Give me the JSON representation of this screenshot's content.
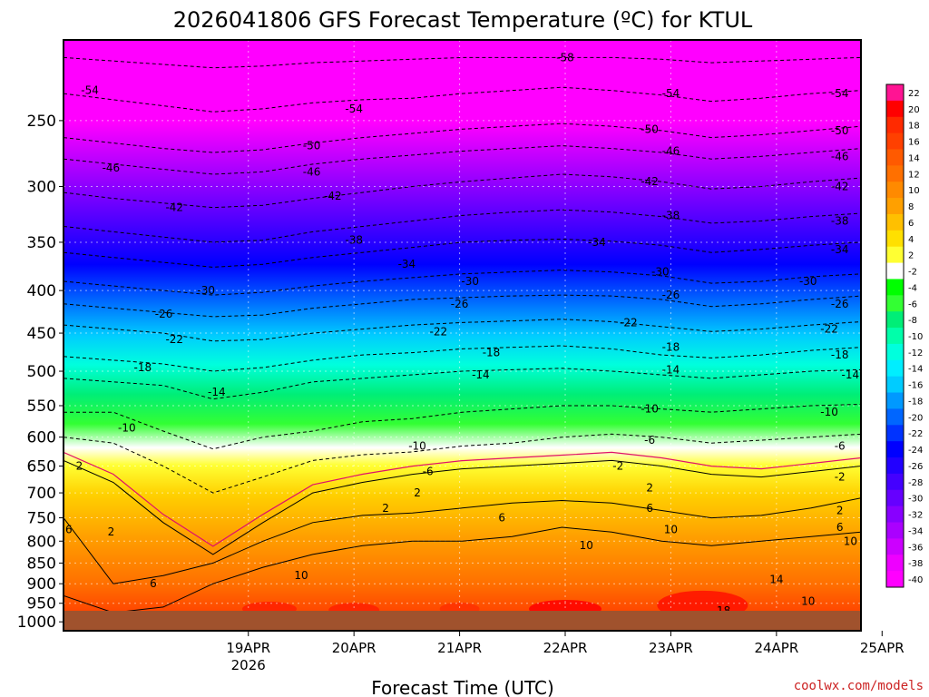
{
  "chart_data": {
    "type": "heatmap",
    "title": "2026041806 GFS Forecast Temperature (ºC) for KTUL",
    "xlabel": "Forecast Time (UTC)",
    "ylabel": "",
    "credit": "coolwx.com/models",
    "x_ticks": [
      {
        "label": "19APR",
        "sublabel": "2026",
        "day": 1
      },
      {
        "label": "20APR",
        "sublabel": "",
        "day": 2
      },
      {
        "label": "21APR",
        "sublabel": "",
        "day": 3
      },
      {
        "label": "22APR",
        "sublabel": "",
        "day": 4
      },
      {
        "label": "23APR",
        "sublabel": "",
        "day": 5
      },
      {
        "label": "24APR",
        "sublabel": "",
        "day": 6
      },
      {
        "label": "25APR",
        "sublabel": "",
        "day": 7
      }
    ],
    "xlim_days": [
      -0.75,
      6.8
    ],
    "y_ticks": [
      250,
      300,
      350,
      400,
      450,
      500,
      550,
      600,
      650,
      700,
      750,
      800,
      850,
      900,
      950,
      1000
    ],
    "y_axis": "pressure (hPa), log scale, inverted",
    "ylim_hpa": [
      1025,
      200
    ],
    "colorbar_levels": [
      22,
      20,
      18,
      16,
      14,
      12,
      10,
      8,
      6,
      4,
      2,
      -2,
      -4,
      -6,
      -8,
      -10,
      -12,
      -14,
      -16,
      -18,
      -20,
      -22,
      -24,
      -26,
      -28,
      -30,
      -32,
      -34,
      -36,
      -38,
      -40
    ],
    "colorbar_colors": [
      "#ff1493",
      "#ff0000",
      "#ff2a00",
      "#ff4000",
      "#ff5a00",
      "#ff7000",
      "#ff8a00",
      "#ffa000",
      "#ffc000",
      "#ffe000",
      "#ffff33",
      "#ffffff",
      "#00ff00",
      "#33ff33",
      "#00ee77",
      "#00ffaa",
      "#00ffdd",
      "#00eeff",
      "#00ccff",
      "#0099ff",
      "#0066ff",
      "#0033ff",
      "#0000ff",
      "#2200ff",
      "#4400ff",
      "#6600ff",
      "#8800ff",
      "#aa00ff",
      "#cc00ff",
      "#ee00ff",
      "#ff00ff"
    ],
    "isotherm_series": [
      {
        "temp": 2,
        "pressure_hpa": [
          640,
          680,
          760,
          830,
          760,
          700,
          680,
          665,
          655,
          650,
          645,
          640,
          650,
          665,
          670,
          660,
          650
        ]
      },
      {
        "temp": 6,
        "pressure_hpa": [
          750,
          900,
          880,
          850,
          800,
          760,
          745,
          740,
          730,
          720,
          715,
          720,
          735,
          750,
          745,
          730,
          710
        ]
      },
      {
        "temp": 10,
        "pressure_hpa": [
          930,
          975,
          960,
          900,
          860,
          830,
          810,
          800,
          800,
          790,
          770,
          780,
          800,
          810,
          800,
          790,
          780
        ]
      },
      {
        "temp": -6,
        "pressure_hpa": [
          600,
          610,
          650,
          700,
          670,
          640,
          630,
          625,
          615,
          610,
          600,
          595,
          600,
          610,
          605,
          600,
          595
        ]
      },
      {
        "temp": -10,
        "pressure_hpa": [
          560,
          560,
          590,
          620,
          600,
          590,
          575,
          570,
          560,
          555,
          550,
          550,
          555,
          560,
          555,
          550,
          548
        ]
      },
      {
        "temp": -14,
        "pressure_hpa": [
          510,
          515,
          520,
          540,
          530,
          515,
          510,
          505,
          500,
          498,
          496,
          500,
          505,
          510,
          505,
          500,
          498
        ]
      },
      {
        "temp": -18,
        "pressure_hpa": [
          480,
          485,
          490,
          500,
          495,
          485,
          478,
          475,
          470,
          468,
          466,
          470,
          478,
          482,
          478,
          472,
          468
        ]
      },
      {
        "temp": -22,
        "pressure_hpa": [
          440,
          445,
          450,
          460,
          458,
          450,
          445,
          440,
          437,
          435,
          433,
          436,
          442,
          448,
          445,
          440,
          436
        ]
      },
      {
        "temp": -26,
        "pressure_hpa": [
          415,
          420,
          425,
          430,
          428,
          420,
          415,
          410,
          408,
          406,
          405,
          406,
          410,
          418,
          415,
          410,
          406
        ]
      },
      {
        "temp": -30,
        "pressure_hpa": [
          390,
          395,
          400,
          405,
          402,
          395,
          390,
          386,
          382,
          380,
          378,
          380,
          384,
          392,
          390,
          385,
          382
        ]
      },
      {
        "temp": -34,
        "pressure_hpa": [
          360,
          365,
          370,
          375,
          372,
          365,
          360,
          355,
          350,
          348,
          347,
          349,
          353,
          360,
          357,
          353,
          350
        ]
      },
      {
        "temp": -38,
        "pressure_hpa": [
          335,
          340,
          345,
          350,
          348,
          340,
          335,
          330,
          325,
          322,
          320,
          322,
          326,
          332,
          330,
          326,
          323
        ]
      },
      {
        "temp": -42,
        "pressure_hpa": [
          305,
          310,
          314,
          318,
          316,
          310,
          305,
          300,
          296,
          293,
          290,
          292,
          296,
          302,
          300,
          296,
          293
        ]
      },
      {
        "temp": -46,
        "pressure_hpa": [
          278,
          282,
          286,
          290,
          288,
          282,
          278,
          275,
          272,
          270,
          268,
          270,
          273,
          278,
          276,
          273,
          270
        ]
      },
      {
        "temp": -50,
        "pressure_hpa": [
          262,
          266,
          270,
          273,
          271,
          266,
          262,
          259,
          256,
          254,
          252,
          254,
          257,
          262,
          260,
          257,
          254
        ]
      },
      {
        "temp": -54,
        "pressure_hpa": [
          232,
          236,
          240,
          244,
          242,
          238,
          236,
          235,
          232,
          230,
          228,
          230,
          233,
          237,
          235,
          232,
          230
        ]
      },
      {
        "temp": -58,
        "pressure_hpa": [
          210,
          212,
          214,
          216,
          215,
          213,
          212,
          211,
          210,
          210,
          210,
          210,
          211,
          213,
          212,
          211,
          210
        ]
      }
    ],
    "isotherm_labels": [
      {
        "text": "-58",
        "day": 4.0,
        "hpa": 210
      },
      {
        "text": "-54",
        "day": -0.5,
        "hpa": 230
      },
      {
        "text": "-54",
        "day": 2.0,
        "hpa": 242
      },
      {
        "text": "-54",
        "day": 5.0,
        "hpa": 232
      },
      {
        "text": "-54",
        "day": 6.6,
        "hpa": 232
      },
      {
        "text": "-50",
        "day": 1.6,
        "hpa": 268
      },
      {
        "text": "-50",
        "day": 4.8,
        "hpa": 256
      },
      {
        "text": "-50",
        "day": 6.6,
        "hpa": 257
      },
      {
        "text": "-46",
        "day": -0.3,
        "hpa": 285
      },
      {
        "text": "-46",
        "day": 1.6,
        "hpa": 288
      },
      {
        "text": "-46",
        "day": 5.0,
        "hpa": 272
      },
      {
        "text": "-46",
        "day": 6.6,
        "hpa": 276
      },
      {
        "text": "-42",
        "day": 0.3,
        "hpa": 318
      },
      {
        "text": "-42",
        "day": 1.8,
        "hpa": 308
      },
      {
        "text": "-42",
        "day": 4.8,
        "hpa": 296
      },
      {
        "text": "-42",
        "day": 6.6,
        "hpa": 300
      },
      {
        "text": "-38",
        "day": 2.0,
        "hpa": 348
      },
      {
        "text": "-38",
        "day": 5.0,
        "hpa": 325
      },
      {
        "text": "-38",
        "day": 6.6,
        "hpa": 330
      },
      {
        "text": "-34",
        "day": 2.5,
        "hpa": 372
      },
      {
        "text": "-34",
        "day": 4.3,
        "hpa": 350
      },
      {
        "text": "-34",
        "day": 6.6,
        "hpa": 357
      },
      {
        "text": "-30",
        "day": 0.6,
        "hpa": 400
      },
      {
        "text": "-30",
        "day": 3.1,
        "hpa": 390
      },
      {
        "text": "-30",
        "day": 4.9,
        "hpa": 380
      },
      {
        "text": "-30",
        "day": 6.3,
        "hpa": 390
      },
      {
        "text": "-26",
        "day": 0.2,
        "hpa": 427
      },
      {
        "text": "-26",
        "day": 3.0,
        "hpa": 415
      },
      {
        "text": "-26",
        "day": 5.0,
        "hpa": 405
      },
      {
        "text": "-26",
        "day": 6.6,
        "hpa": 415
      },
      {
        "text": "-22",
        "day": 0.3,
        "hpa": 458
      },
      {
        "text": "-22",
        "day": 2.8,
        "hpa": 448
      },
      {
        "text": "-22",
        "day": 4.6,
        "hpa": 437
      },
      {
        "text": "-22",
        "day": 6.5,
        "hpa": 445
      },
      {
        "text": "-18",
        "day": 0.0,
        "hpa": 495
      },
      {
        "text": "-18",
        "day": 3.3,
        "hpa": 475
      },
      {
        "text": "-18",
        "day": 5.0,
        "hpa": 468
      },
      {
        "text": "-18",
        "day": 6.6,
        "hpa": 478
      },
      {
        "text": "-14",
        "day": 0.7,
        "hpa": 530
      },
      {
        "text": "-14",
        "day": 3.2,
        "hpa": 505
      },
      {
        "text": "-14",
        "day": 5.0,
        "hpa": 498
      },
      {
        "text": "-14",
        "day": 6.7,
        "hpa": 505
      },
      {
        "text": "-10",
        "day": -0.15,
        "hpa": 585
      },
      {
        "text": "-10",
        "day": 2.6,
        "hpa": 615
      },
      {
        "text": "-10",
        "day": 4.8,
        "hpa": 555
      },
      {
        "text": "-10",
        "day": 6.5,
        "hpa": 560
      },
      {
        "text": "-6",
        "day": 2.7,
        "hpa": 660
      },
      {
        "text": "-6",
        "day": 4.8,
        "hpa": 605
      },
      {
        "text": "-6",
        "day": 6.6,
        "hpa": 615
      },
      {
        "text": "-2",
        "day": 4.5,
        "hpa": 650
      },
      {
        "text": "-2",
        "day": 6.6,
        "hpa": 670
      },
      {
        "text": "2",
        "day": -0.6,
        "hpa": 650
      },
      {
        "text": "2",
        "day": 2.6,
        "hpa": 700
      },
      {
        "text": "2",
        "day": 2.3,
        "hpa": 730
      },
      {
        "text": "2",
        "day": 4.8,
        "hpa": 690
      },
      {
        "text": "2",
        "day": 6.6,
        "hpa": 735
      },
      {
        "text": "2",
        "day": -0.3,
        "hpa": 780
      },
      {
        "text": "6",
        "day": -0.7,
        "hpa": 775
      },
      {
        "text": "6",
        "day": 0.1,
        "hpa": 900
      },
      {
        "text": "6",
        "day": 3.4,
        "hpa": 750
      },
      {
        "text": "6",
        "day": 4.8,
        "hpa": 730
      },
      {
        "text": "6",
        "day": 6.6,
        "hpa": 770
      },
      {
        "text": "10",
        "day": 1.5,
        "hpa": 880
      },
      {
        "text": "10",
        "day": 4.2,
        "hpa": 810
      },
      {
        "text": "10",
        "day": 5.0,
        "hpa": 775
      },
      {
        "text": "10",
        "day": 6.7,
        "hpa": 800
      },
      {
        "text": "10",
        "day": 6.3,
        "hpa": 945
      },
      {
        "text": "14",
        "day": 6.0,
        "hpa": 890
      },
      {
        "text": "14",
        "day": 7.0,
        "hpa": 945
      },
      {
        "text": "18",
        "day": 5.5,
        "hpa": 970
      }
    ]
  }
}
